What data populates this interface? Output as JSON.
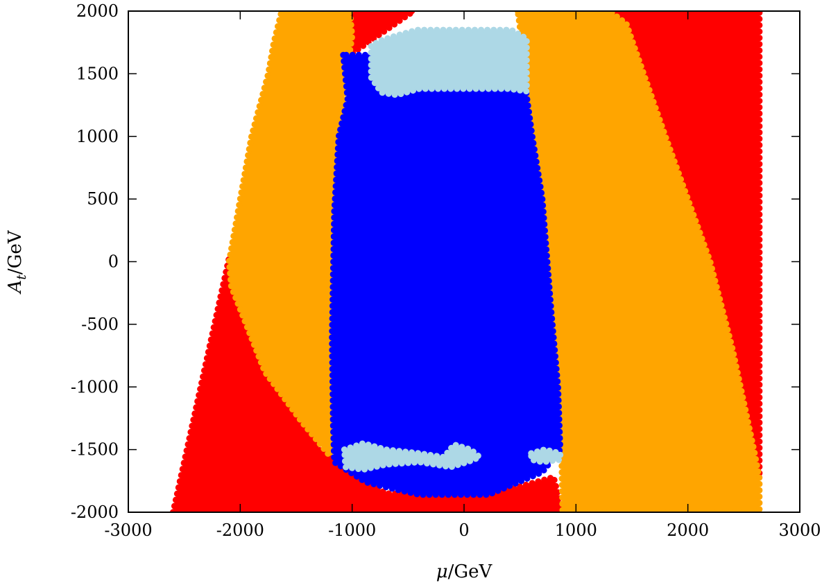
{
  "chart_data": {
    "type": "scatter",
    "title": "",
    "xlabel": "μ/GeV",
    "ylabel": "A_t/GeV",
    "xlabel_parts": {
      "var": "μ",
      "unit": "/GeV"
    },
    "ylabel_parts": {
      "var": "A",
      "sub": "t",
      "unit": "/GeV"
    },
    "xlim": [
      -3000,
      3000
    ],
    "ylim": [
      -2000,
      2000
    ],
    "xticks": [
      -3000,
      -2000,
      -1000,
      0,
      1000,
      2000,
      3000
    ],
    "yticks": [
      -2000,
      -1500,
      -1000,
      -500,
      0,
      500,
      1000,
      1500,
      2000
    ],
    "xtick_labels": [
      "-3000",
      "-2000",
      "-1000",
      "0",
      "1000",
      "2000",
      "3000"
    ],
    "ytick_labels": [
      "-2000",
      "-1500",
      "-1000",
      "-500",
      "0",
      "500",
      "1000",
      "1500",
      "2000"
    ],
    "grid": false,
    "legend": "none",
    "series": [
      {
        "color": "#ff0000",
        "regions": [
          [
            [
              -2600,
              -2000
            ],
            [
              -2100,
              30
            ],
            [
              -1300,
              -1500
            ],
            [
              -700,
              -1850
            ],
            [
              200,
              -1870
            ],
            [
              800,
              -1720
            ],
            [
              880,
              -2000
            ]
          ],
          [
            [
              -1200,
              2000
            ],
            [
              -450,
              2000
            ],
            [
              -1100,
              1600
            ],
            [
              -1130,
              1300
            ]
          ],
          [
            [
              1300,
              2000
            ],
            [
              2640,
              2000
            ],
            [
              2640,
              -1730
            ],
            [
              2590,
              -1500
            ],
            [
              2400,
              -700
            ],
            [
              2200,
              0
            ],
            [
              2000,
              500
            ],
            [
              1800,
              1000
            ],
            [
              1450,
              1900
            ]
          ]
        ]
      },
      {
        "color": "#ffa500",
        "regions": [
          [
            [
              -1630,
              2000
            ],
            [
              -1020,
              2000
            ],
            [
              -1000,
              1800
            ],
            [
              -1050,
              1500
            ],
            [
              -1120,
              1000
            ],
            [
              -1160,
              400
            ],
            [
              -1180,
              -600
            ],
            [
              -1170,
              -1300
            ],
            [
              -1200,
              -1550
            ],
            [
              -1450,
              -1280
            ],
            [
              -1780,
              -880
            ],
            [
              -2080,
              -200
            ],
            [
              -2100,
              0
            ],
            [
              -2000,
              500
            ],
            [
              -1900,
              1000
            ],
            [
              -1750,
              1500
            ],
            [
              -1700,
              1750
            ]
          ],
          [
            [
              480,
              2000
            ],
            [
              1300,
              2000
            ],
            [
              1450,
              1900
            ],
            [
              1800,
              1000
            ],
            [
              2000,
              500
            ],
            [
              2200,
              0
            ],
            [
              2400,
              -700
            ],
            [
              2590,
              -1500
            ],
            [
              2640,
              -1730
            ],
            [
              2640,
              -2000
            ],
            [
              880,
              -2000
            ],
            [
              860,
              -1000
            ],
            [
              780,
              -400
            ],
            [
              680,
              500
            ],
            [
              600,
              1000
            ],
            [
              540,
              1600
            ]
          ]
        ]
      },
      {
        "color": "#0000ff",
        "regions": [
          [
            [
              -1080,
              1650
            ],
            [
              -1040,
              1300
            ],
            [
              -1120,
              1000
            ],
            [
              -1160,
              400
            ],
            [
              -1180,
              -600
            ],
            [
              -1170,
              -1300
            ],
            [
              -1160,
              -1600
            ],
            [
              -880,
              -1760
            ],
            [
              -600,
              -1820
            ],
            [
              -400,
              -1860
            ],
            [
              220,
              -1860
            ],
            [
              700,
              -1680
            ],
            [
              860,
              -1500
            ],
            [
              840,
              -1000
            ],
            [
              780,
              -400
            ],
            [
              700,
              500
            ],
            [
              610,
              1000
            ],
            [
              540,
              1450
            ],
            [
              -780,
              1500
            ],
            [
              -800,
              1650
            ]
          ]
        ]
      },
      {
        "color": "#add8e6",
        "regions": [
          [
            [
              -830,
              1720
            ],
            [
              -830,
              1470
            ],
            [
              -740,
              1350
            ],
            [
              -600,
              1330
            ],
            [
              -400,
              1380
            ],
            [
              400,
              1380
            ],
            [
              560,
              1360
            ],
            [
              560,
              1780
            ],
            [
              420,
              1850
            ],
            [
              -420,
              1850
            ],
            [
              -620,
              1800
            ],
            [
              -760,
              1760
            ]
          ],
          [
            [
              -1070,
              -1500
            ],
            [
              -900,
              -1450
            ],
            [
              -700,
              -1500
            ],
            [
              -400,
              -1530
            ],
            [
              -180,
              -1560
            ],
            [
              -90,
              -1460
            ],
            [
              60,
              -1500
            ],
            [
              140,
              -1560
            ],
            [
              30,
              -1600
            ],
            [
              -120,
              -1640
            ],
            [
              -400,
              -1600
            ],
            [
              -700,
              -1620
            ],
            [
              -900,
              -1660
            ],
            [
              -1060,
              -1640
            ]
          ],
          [
            [
              600,
              -1530
            ],
            [
              720,
              -1500
            ],
            [
              860,
              -1530
            ],
            [
              860,
              -1580
            ],
            [
              700,
              -1600
            ],
            [
              600,
              -1580
            ]
          ]
        ]
      }
    ]
  }
}
